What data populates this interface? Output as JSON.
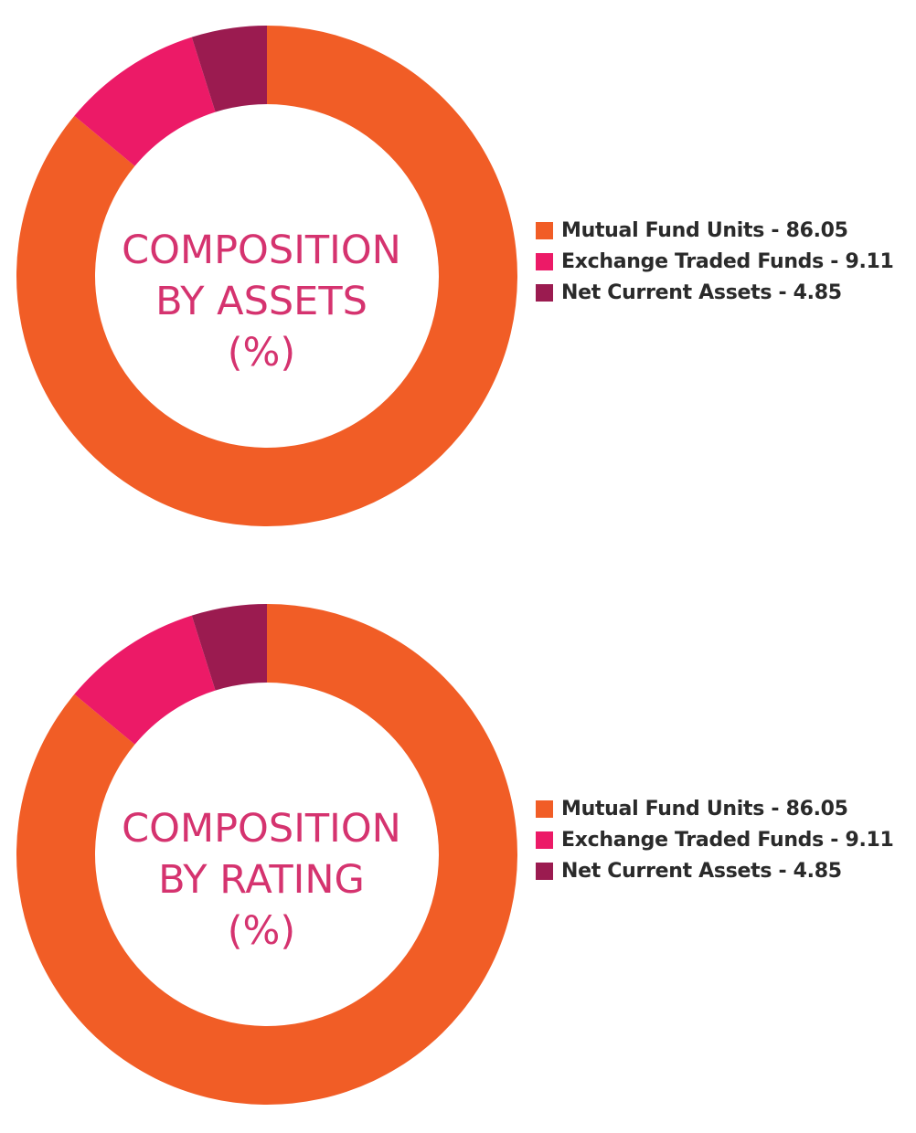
{
  "chart_data": [
    {
      "type": "pie",
      "title_lines": [
        "COMPOSITION",
        "BY ASSETS",
        "(%)"
      ],
      "categories": [
        "Mutual Fund Units",
        "Exchange Traded Funds",
        "Net Current Assets"
      ],
      "values": [
        86.05,
        9.11,
        4.85
      ],
      "colors": [
        "#f15d26",
        "#ec1a67",
        "#9b1b50"
      ],
      "legend_labels": [
        "Mutual Fund Units - 86.05",
        "Exchange Traded Funds - 9.11",
        "Net Current Assets - 4.85"
      ],
      "legend_position": "right",
      "style": "donut"
    },
    {
      "type": "pie",
      "title_lines": [
        "COMPOSITION",
        "BY RATING",
        "(%)"
      ],
      "categories": [
        "Mutual Fund Units",
        "Exchange Traded Funds",
        "Net Current Assets"
      ],
      "values": [
        86.05,
        9.11,
        4.85
      ],
      "colors": [
        "#f15d26",
        "#ec1a67",
        "#9b1b50"
      ],
      "legend_labels": [
        "Mutual Fund Units - 86.05",
        "Exchange Traded Funds - 9.11",
        "Net Current Assets - 4.85"
      ],
      "legend_position": "right",
      "style": "donut"
    }
  ]
}
